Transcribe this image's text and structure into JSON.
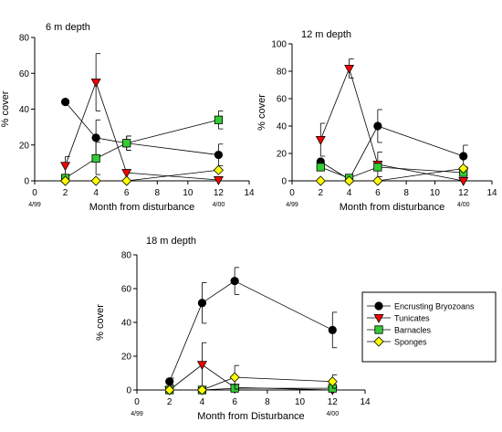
{
  "legend": {
    "entries": [
      {
        "name": "Encrusting Bryozoans",
        "marker": "circle",
        "color": "#000000"
      },
      {
        "name": "Tunicates",
        "marker": "triangle-down",
        "color": "#ff0000"
      },
      {
        "name": "Barnacles",
        "marker": "square",
        "color": "#33cc33"
      },
      {
        "name": "Sponges",
        "marker": "diamond",
        "color": "#ffff00"
      }
    ]
  },
  "chart_data": [
    {
      "type": "line",
      "title": "6 m depth",
      "xlabel": "Month from disturbance",
      "ylabel": "% cover",
      "xlim": [
        0,
        14
      ],
      "ylim": [
        0,
        80
      ],
      "xticks": [
        0,
        2,
        4,
        6,
        8,
        10,
        12,
        14
      ],
      "yticks": [
        0,
        20,
        40,
        60,
        80
      ],
      "date_labels": [
        "4/99",
        "4/00"
      ],
      "series": [
        {
          "name": "Encrusting Bryozoans",
          "x": [
            2,
            4,
            6,
            12
          ],
          "y": [
            44,
            24,
            21,
            14.5
          ],
          "err": [
            0,
            10,
            4,
            6
          ]
        },
        {
          "name": "Tunicates",
          "x": [
            2,
            4,
            6,
            12
          ],
          "y": [
            8.5,
            55,
            4.5,
            0.5
          ],
          "err": [
            5,
            16,
            0,
            0
          ]
        },
        {
          "name": "Barnacles",
          "x": [
            2,
            4,
            6,
            12
          ],
          "y": [
            1.5,
            12.5,
            21,
            34
          ],
          "err": [
            0,
            9,
            4,
            5
          ]
        },
        {
          "name": "Sponges",
          "x": [
            2,
            4,
            6,
            12
          ],
          "y": [
            0,
            0,
            0,
            6
          ],
          "err": [
            0,
            0,
            0,
            0
          ]
        }
      ]
    },
    {
      "type": "line",
      "title": "12 m depth",
      "xlabel": "Month from disturbance",
      "ylabel": "% cover",
      "xlim": [
        0,
        14
      ],
      "ylim": [
        0,
        100
      ],
      "xticks": [
        0,
        2,
        4,
        6,
        8,
        10,
        12,
        14
      ],
      "yticks": [
        0,
        20,
        40,
        60,
        80,
        100
      ],
      "date_labels": [
        "4/99",
        "4/00"
      ],
      "series": [
        {
          "name": "Encrusting Bryozoans",
          "x": [
            2,
            4,
            6,
            12
          ],
          "y": [
            14,
            1,
            40,
            18
          ],
          "err": [
            0,
            0,
            12,
            8
          ]
        },
        {
          "name": "Tunicates",
          "x": [
            2,
            4,
            6,
            12
          ],
          "y": [
            30,
            82,
            12,
            0
          ],
          "err": [
            12,
            7,
            9,
            0
          ]
        },
        {
          "name": "Barnacles",
          "x": [
            2,
            4,
            6,
            12
          ],
          "y": [
            10,
            2,
            10,
            6
          ],
          "err": [
            0,
            0,
            0,
            0
          ]
        },
        {
          "name": "Sponges",
          "x": [
            2,
            4,
            6,
            12
          ],
          "y": [
            0,
            0,
            0,
            9
          ],
          "err": [
            0,
            0,
            0,
            0
          ]
        }
      ]
    },
    {
      "type": "line",
      "title": "18 m depth",
      "xlabel": "Month from Disturbance",
      "ylabel": "% cover",
      "xlim": [
        0,
        14
      ],
      "ylim": [
        0,
        80
      ],
      "xticks": [
        0,
        2,
        4,
        6,
        8,
        10,
        12,
        14
      ],
      "yticks": [
        0,
        20,
        40,
        60,
        80
      ],
      "date_labels": [
        "4/99",
        "4/00"
      ],
      "series": [
        {
          "name": "Encrusting Bryozoans",
          "x": [
            2,
            4,
            6,
            12
          ],
          "y": [
            5,
            51.5,
            64.5,
            35.5
          ],
          "err": [
            2,
            12,
            8,
            10.5
          ]
        },
        {
          "name": "Tunicates",
          "x": [
            2,
            4,
            6,
            12
          ],
          "y": [
            0,
            15,
            1.5,
            0
          ],
          "err": [
            0,
            13,
            0,
            0
          ]
        },
        {
          "name": "Barnacles",
          "x": [
            2,
            4,
            6,
            12
          ],
          "y": [
            0,
            0,
            1,
            1
          ],
          "err": [
            0,
            0,
            0,
            0
          ]
        },
        {
          "name": "Sponges",
          "x": [
            2,
            4,
            6,
            12
          ],
          "y": [
            0,
            0,
            7.5,
            5
          ],
          "err": [
            0,
            0,
            7,
            4
          ]
        }
      ]
    }
  ]
}
